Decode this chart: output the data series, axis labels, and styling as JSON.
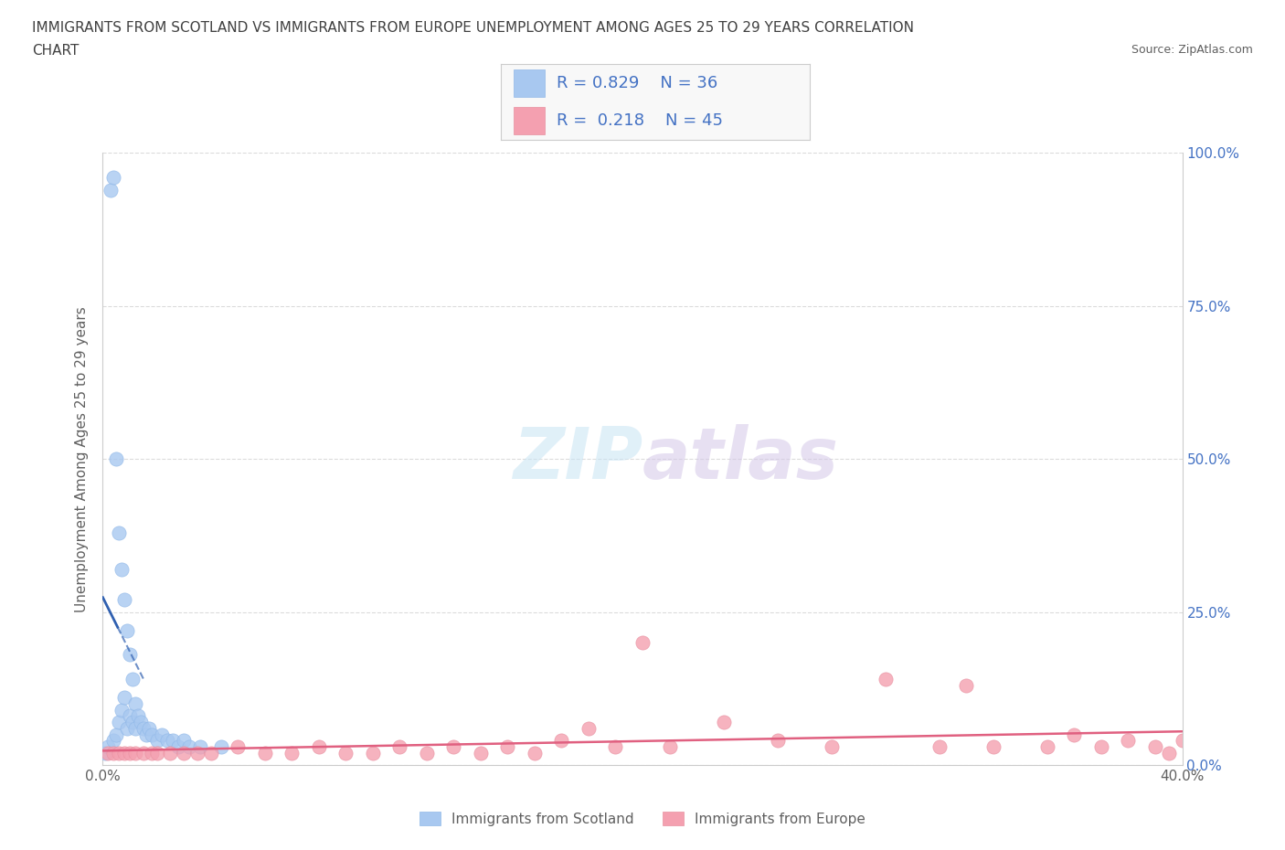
{
  "title_line1": "IMMIGRANTS FROM SCOTLAND VS IMMIGRANTS FROM EUROPE UNEMPLOYMENT AMONG AGES 25 TO 29 YEARS CORRELATION",
  "title_line2": "CHART",
  "source": "Source: ZipAtlas.com",
  "ylabel": "Unemployment Among Ages 25 to 29 years",
  "watermark": "ZIPatlas",
  "legend_bottom": [
    "Immigrants from Scotland",
    "Immigrants from Europe"
  ],
  "scotland_R": 0.829,
  "scotland_N": 36,
  "europe_R": 0.218,
  "europe_N": 45,
  "scotland_color": "#a8c8f0",
  "europe_color": "#f4a0b0",
  "trendline_scotland_color": "#3060b0",
  "trendline_europe_color": "#e06080",
  "xlim": [
    0.0,
    0.4
  ],
  "ylim": [
    0.0,
    1.0
  ],
  "scotland_x": [
    0.001,
    0.002,
    0.003,
    0.004,
    0.004,
    0.005,
    0.005,
    0.006,
    0.006,
    0.007,
    0.007,
    0.008,
    0.008,
    0.009,
    0.009,
    0.01,
    0.01,
    0.011,
    0.011,
    0.012,
    0.012,
    0.013,
    0.014,
    0.015,
    0.016,
    0.017,
    0.018,
    0.02,
    0.022,
    0.024,
    0.026,
    0.028,
    0.03,
    0.032,
    0.036,
    0.044
  ],
  "scotland_y": [
    0.02,
    0.03,
    0.94,
    0.96,
    0.04,
    0.05,
    0.5,
    0.38,
    0.07,
    0.32,
    0.09,
    0.27,
    0.11,
    0.22,
    0.06,
    0.18,
    0.08,
    0.14,
    0.07,
    0.1,
    0.06,
    0.08,
    0.07,
    0.06,
    0.05,
    0.06,
    0.05,
    0.04,
    0.05,
    0.04,
    0.04,
    0.03,
    0.04,
    0.03,
    0.03,
    0.03
  ],
  "europe_x": [
    0.002,
    0.004,
    0.006,
    0.008,
    0.01,
    0.012,
    0.015,
    0.018,
    0.02,
    0.025,
    0.03,
    0.035,
    0.04,
    0.05,
    0.06,
    0.07,
    0.08,
    0.09,
    0.1,
    0.11,
    0.12,
    0.13,
    0.14,
    0.15,
    0.16,
    0.17,
    0.18,
    0.19,
    0.2,
    0.21,
    0.23,
    0.25,
    0.27,
    0.29,
    0.31,
    0.32,
    0.33,
    0.35,
    0.36,
    0.37,
    0.38,
    0.39,
    0.395,
    0.4,
    0.405
  ],
  "europe_y": [
    0.02,
    0.02,
    0.02,
    0.02,
    0.02,
    0.02,
    0.02,
    0.02,
    0.02,
    0.02,
    0.02,
    0.02,
    0.02,
    0.03,
    0.02,
    0.02,
    0.03,
    0.02,
    0.02,
    0.03,
    0.02,
    0.03,
    0.02,
    0.03,
    0.02,
    0.04,
    0.06,
    0.03,
    0.2,
    0.03,
    0.07,
    0.04,
    0.03,
    0.14,
    0.03,
    0.13,
    0.03,
    0.03,
    0.05,
    0.03,
    0.04,
    0.03,
    0.02,
    0.04,
    0.02
  ],
  "background_color": "#ffffff",
  "grid_color": "#d8d8d8",
  "title_color": "#404040",
  "axis_label_color": "#606060",
  "right_y_tick_color": "#4472c4",
  "legend_box_color": "#f8f8f8"
}
